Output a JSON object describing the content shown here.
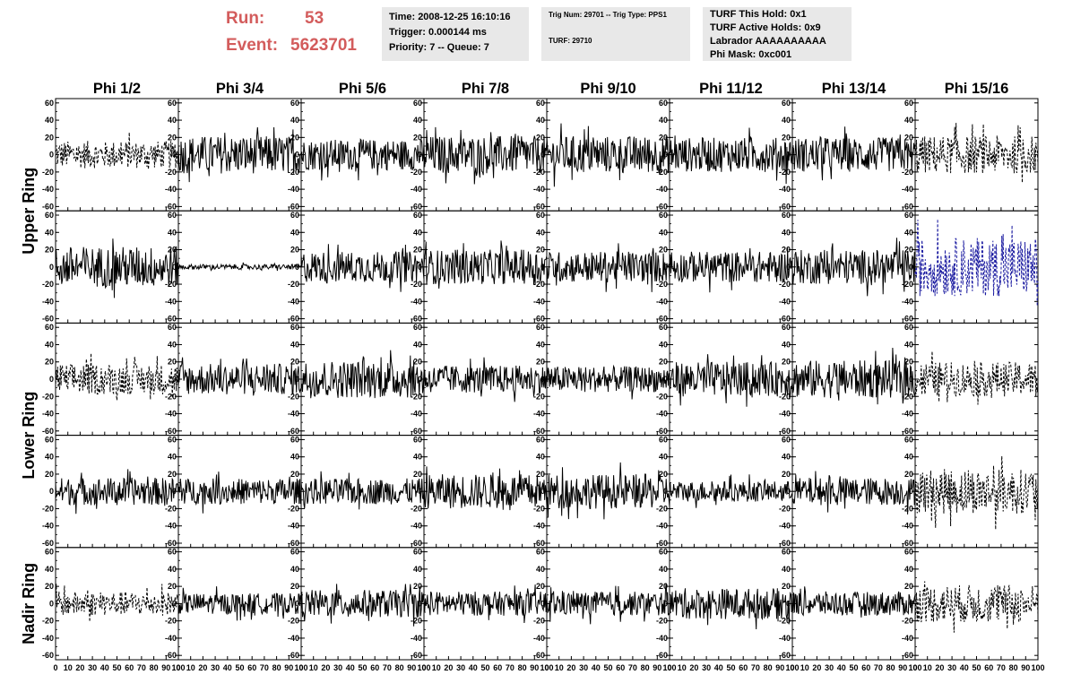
{
  "header": {
    "run_label": "Run:",
    "run_value": "53",
    "event_label": "Event:",
    "event_value": "5623701"
  },
  "info_boxes": {
    "time": "Time: 2008-12-25 16:10:16",
    "trigger": "Trigger: 0.000144 ms",
    "priority": "Priority: 7 -- Queue: 7",
    "trig_num": "Trig Num: 29701 -- Trig Type: PPS1",
    "turf": "TURF: 29710",
    "turf_this_hold": "TURF This Hold: 0x1",
    "turf_active_holds": "TURF Active Holds: 0x9",
    "labrador": "Labrador AAAAAAAAAA",
    "phi_mask": "Phi Mask: 0xc001"
  },
  "colors": {
    "header_red": "#d35c5c",
    "box_gray": "#e8e8e8",
    "trace_black": "#000000",
    "trace_blue": "#1a1aa0"
  },
  "chart_data": {
    "type": "line",
    "columns": [
      "Phi 1/2",
      "Phi 3/4",
      "Phi 5/6",
      "Phi 7/8",
      "Phi 9/10",
      "Phi 11/12",
      "Phi 13/14",
      "Phi 15/16"
    ],
    "rows": [
      "Upper Ring",
      "Lower Ring",
      "Nadir Ring"
    ],
    "row_spans": [
      2,
      2,
      1
    ],
    "xlim": [
      0,
      100
    ],
    "ylim": [
      -65,
      65
    ],
    "x_ticks": [
      0,
      10,
      20,
      30,
      40,
      50,
      60,
      70,
      80,
      90,
      100
    ],
    "x_tick_labels": [
      "0",
      "10",
      "20",
      "30",
      "40",
      "50",
      "60",
      "70",
      "80",
      "90",
      "100"
    ],
    "y_ticks": [
      -60,
      -40,
      -20,
      0,
      20,
      40,
      60
    ],
    "y_tick_labels": [
      "-60",
      "-40",
      "-20",
      "0",
      "20",
      "40",
      "60"
    ],
    "x_range_per_panel": [
      0,
      100
    ],
    "panel_traces": [
      [
        {
          "amp": 16,
          "style": "dashed",
          "color": "#000000"
        },
        {
          "amp": 22,
          "style": "solid",
          "color": "#000000"
        },
        {
          "amp": 18,
          "style": "solid",
          "color": "#000000"
        },
        {
          "amp": 22,
          "style": "solid",
          "color": "#000000"
        },
        {
          "amp": 22,
          "style": "solid",
          "color": "#000000"
        },
        {
          "amp": 20,
          "style": "solid",
          "color": "#000000"
        },
        {
          "amp": 20,
          "style": "solid",
          "color": "#000000"
        },
        {
          "amp": 22,
          "style": "dashed",
          "color": "#000000"
        }
      ],
      [
        {
          "amp": 24,
          "style": "solid",
          "color": "#000000"
        },
        {
          "amp": 3,
          "style": "solid",
          "color": "#000000"
        },
        {
          "amp": 18,
          "style": "solid",
          "color": "#000000"
        },
        {
          "amp": 20,
          "style": "solid",
          "color": "#000000"
        },
        {
          "amp": 18,
          "style": "solid",
          "color": "#000000"
        },
        {
          "amp": 18,
          "style": "solid",
          "color": "#000000"
        },
        {
          "amp": 20,
          "style": "solid",
          "color": "#000000"
        },
        {
          "amp": 34,
          "style": "dashed",
          "color": "#1a1aa0"
        }
      ],
      [
        {
          "amp": 18,
          "style": "dashed",
          "color": "#000000"
        },
        {
          "amp": 18,
          "style": "solid",
          "color": "#000000"
        },
        {
          "amp": 22,
          "style": "solid",
          "color": "#000000"
        },
        {
          "amp": 16,
          "style": "solid",
          "color": "#000000"
        },
        {
          "amp": 15,
          "style": "solid",
          "color": "#000000"
        },
        {
          "amp": 20,
          "style": "solid",
          "color": "#000000"
        },
        {
          "amp": 22,
          "style": "solid",
          "color": "#000000"
        },
        {
          "amp": 20,
          "style": "dashed",
          "color": "#000000"
        }
      ],
      [
        {
          "amp": 16,
          "style": "solid",
          "color": "#000000"
        },
        {
          "amp": 15,
          "style": "solid",
          "color": "#000000"
        },
        {
          "amp": 15,
          "style": "solid",
          "color": "#000000"
        },
        {
          "amp": 20,
          "style": "solid",
          "color": "#000000"
        },
        {
          "amp": 20,
          "style": "solid",
          "color": "#000000"
        },
        {
          "amp": 12,
          "style": "solid",
          "color": "#000000"
        },
        {
          "amp": 16,
          "style": "solid",
          "color": "#000000"
        },
        {
          "amp": 26,
          "style": "dashed",
          "color": "#000000"
        }
      ],
      [
        {
          "amp": 14,
          "style": "dashed",
          "color": "#000000"
        },
        {
          "amp": 12,
          "style": "solid",
          "color": "#000000"
        },
        {
          "amp": 16,
          "style": "solid",
          "color": "#000000"
        },
        {
          "amp": 14,
          "style": "solid",
          "color": "#000000"
        },
        {
          "amp": 14,
          "style": "solid",
          "color": "#000000"
        },
        {
          "amp": 18,
          "style": "solid",
          "color": "#000000"
        },
        {
          "amp": 14,
          "style": "solid",
          "color": "#000000"
        },
        {
          "amp": 22,
          "style": "dashed",
          "color": "#000000"
        }
      ]
    ]
  }
}
